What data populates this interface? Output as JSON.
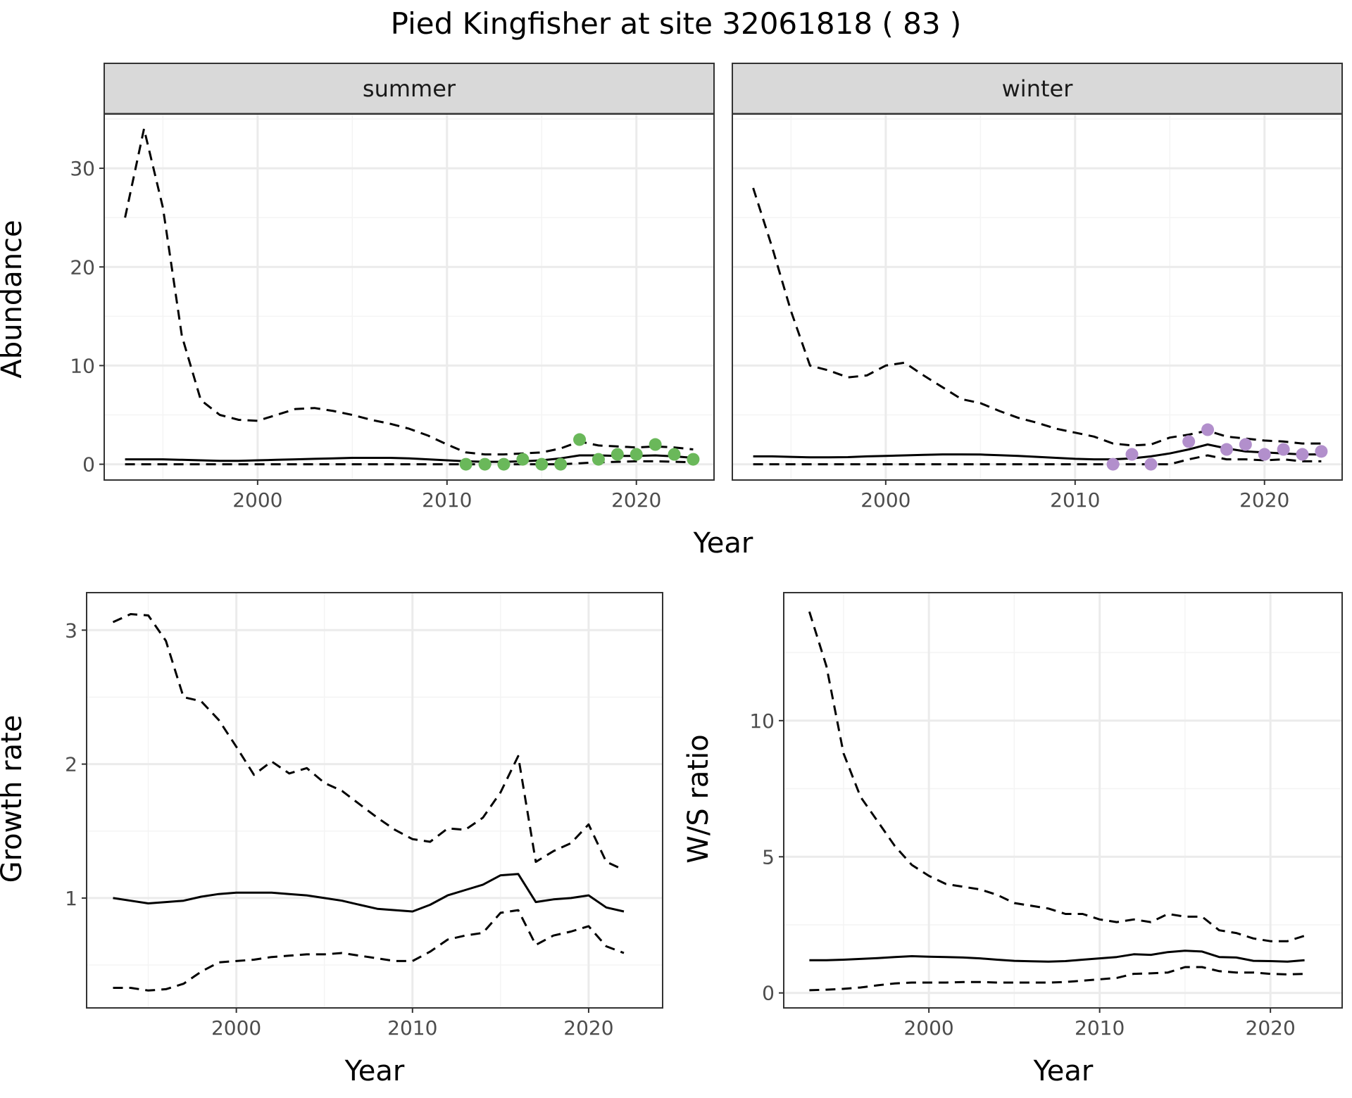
{
  "title": "Pied Kingfisher at site 32061818 ( 83 )",
  "colors": {
    "summer_points": "#6ab85a",
    "winter_points": "#b28fcc",
    "line": "#000000",
    "strip_bg": "#d9d9d9",
    "grid_major": "#ebebeb",
    "grid_minor": "#f4f4f4"
  },
  "chart_data": [
    {
      "type": "line",
      "facet": "summer",
      "strip_label": "summer",
      "xlabel": "Year",
      "ylabel": "Abundance",
      "xlim": [
        1991.9,
        2024.1
      ],
      "ylim": [
        -1.6,
        35.5
      ],
      "xticks": [
        2000,
        2010,
        2020
      ],
      "yticks": [
        0,
        10,
        20,
        30
      ],
      "grid": true,
      "x": [
        1993,
        1994,
        1995,
        1996,
        1997,
        1998,
        1999,
        2000,
        2001,
        2002,
        2003,
        2004,
        2005,
        2006,
        2007,
        2008,
        2009,
        2010,
        2011,
        2012,
        2013,
        2014,
        2015,
        2016,
        2017,
        2018,
        2019,
        2020,
        2021,
        2022,
        2023
      ],
      "series": [
        {
          "style": "solid",
          "values": [
            0.5,
            0.5,
            0.5,
            0.45,
            0.4,
            0.35,
            0.35,
            0.4,
            0.45,
            0.5,
            0.55,
            0.6,
            0.65,
            0.65,
            0.65,
            0.6,
            0.5,
            0.4,
            0.3,
            0.25,
            0.25,
            0.3,
            0.4,
            0.6,
            0.9,
            0.9,
            0.85,
            0.85,
            0.9,
            0.8,
            0.65
          ]
        },
        {
          "style": "dashed",
          "values": [
            25,
            34,
            26,
            13,
            6.5,
            5,
            4.5,
            4.4,
            5,
            5.6,
            5.7,
            5.4,
            5,
            4.5,
            4.1,
            3.6,
            2.9,
            2,
            1.2,
            1,
            1,
            1.1,
            1.2,
            1.6,
            2.3,
            1.9,
            1.8,
            1.7,
            1.8,
            1.7,
            1.5
          ]
        },
        {
          "style": "dashed",
          "values": [
            0,
            0,
            0,
            0,
            0,
            0,
            0,
            0,
            0,
            0,
            0,
            0,
            0,
            0,
            0,
            0,
            0,
            0,
            0,
            0,
            0,
            0,
            0,
            0,
            0.1,
            0.2,
            0.25,
            0.3,
            0.3,
            0.25,
            0.2
          ]
        }
      ],
      "points": {
        "x": [
          2011,
          2012,
          2013,
          2014,
          2015,
          2016,
          2017,
          2018,
          2019,
          2020,
          2021,
          2022,
          2023
        ],
        "y": [
          0,
          0,
          0,
          0.5,
          0,
          0,
          2.5,
          0.5,
          1,
          1,
          2,
          1,
          0.5
        ]
      }
    },
    {
      "type": "line",
      "facet": "winter",
      "strip_label": "winter",
      "xlabel": "Year",
      "ylabel": "Abundance",
      "xlim": [
        1991.9,
        2024.1
      ],
      "ylim": [
        -1.6,
        35.5
      ],
      "xticks": [
        2000,
        2010,
        2020
      ],
      "yticks": [
        0,
        10,
        20,
        30
      ],
      "grid": true,
      "x": [
        1993,
        1994,
        1995,
        1996,
        1997,
        1998,
        1999,
        2000,
        2001,
        2002,
        2003,
        2004,
        2005,
        2006,
        2007,
        2008,
        2009,
        2010,
        2011,
        2012,
        2013,
        2014,
        2015,
        2016,
        2017,
        2018,
        2019,
        2020,
        2021,
        2022,
        2023
      ],
      "series": [
        {
          "style": "solid",
          "values": [
            0.8,
            0.8,
            0.75,
            0.7,
            0.7,
            0.72,
            0.8,
            0.85,
            0.9,
            0.95,
            1.0,
            1.0,
            0.98,
            0.92,
            0.85,
            0.75,
            0.65,
            0.55,
            0.5,
            0.5,
            0.6,
            0.8,
            1.1,
            1.5,
            2.0,
            1.6,
            1.3,
            1.2,
            1.1,
            1.0,
            1.0
          ]
        },
        {
          "style": "dashed",
          "values": [
            28,
            22,
            15.5,
            10,
            9.5,
            8.8,
            9,
            10,
            10.3,
            9,
            7.8,
            6.6,
            6.2,
            5.4,
            4.7,
            4.2,
            3.6,
            3.2,
            2.8,
            2.1,
            1.9,
            2.0,
            2.7,
            3.0,
            3.4,
            2.8,
            2.6,
            2.4,
            2.3,
            2.1,
            2.1
          ]
        },
        {
          "style": "dashed",
          "values": [
            0,
            0,
            0,
            0,
            0,
            0,
            0,
            0,
            0,
            0,
            0,
            0,
            0,
            0,
            0,
            0,
            0,
            0,
            0,
            0,
            0,
            0,
            0,
            0.5,
            0.9,
            0.5,
            0.5,
            0.4,
            0.5,
            0.3,
            0.3
          ]
        }
      ],
      "points": {
        "x": [
          2012,
          2013,
          2014,
          2016,
          2017,
          2018,
          2019,
          2020,
          2021,
          2022,
          2023
        ],
        "y": [
          0,
          1,
          0,
          2.3,
          3.5,
          1.5,
          2,
          1,
          1.5,
          1,
          1.3
        ]
      }
    },
    {
      "type": "line",
      "facet": "growth",
      "xlabel": "Year",
      "ylabel": "Growth rate",
      "xlim": [
        1991.5,
        2024.2
      ],
      "ylim": [
        0.18,
        3.28
      ],
      "xticks": [
        2000,
        2010,
        2020
      ],
      "yticks": [
        1,
        2,
        3
      ],
      "grid": true,
      "x": [
        1993,
        1994,
        1995,
        1996,
        1997,
        1998,
        1999,
        2000,
        2001,
        2002,
        2003,
        2004,
        2005,
        2006,
        2007,
        2008,
        2009,
        2010,
        2011,
        2012,
        2013,
        2014,
        2015,
        2016,
        2017,
        2018,
        2019,
        2020,
        2021,
        2022
      ],
      "series": [
        {
          "style": "solid",
          "values": [
            1.0,
            0.98,
            0.96,
            0.97,
            0.98,
            1.01,
            1.03,
            1.04,
            1.04,
            1.04,
            1.03,
            1.02,
            1.0,
            0.98,
            0.95,
            0.92,
            0.91,
            0.9,
            0.95,
            1.02,
            1.06,
            1.1,
            1.17,
            1.18,
            0.97,
            0.99,
            1.0,
            1.02,
            0.93,
            0.9
          ]
        },
        {
          "style": "dashed",
          "values": [
            3.06,
            3.12,
            3.11,
            2.92,
            2.5,
            2.47,
            2.33,
            2.13,
            1.92,
            2.02,
            1.93,
            1.97,
            1.86,
            1.8,
            1.7,
            1.6,
            1.51,
            1.44,
            1.42,
            1.52,
            1.51,
            1.6,
            1.79,
            2.06,
            1.27,
            1.35,
            1.41,
            1.55,
            1.27,
            1.21
          ]
        },
        {
          "style": "dashed",
          "values": [
            0.33,
            0.33,
            0.31,
            0.32,
            0.36,
            0.45,
            0.52,
            0.53,
            0.54,
            0.56,
            0.57,
            0.58,
            0.58,
            0.59,
            0.57,
            0.55,
            0.53,
            0.53,
            0.6,
            0.69,
            0.72,
            0.74,
            0.89,
            0.91,
            0.65,
            0.72,
            0.75,
            0.79,
            0.64,
            0.59
          ]
        }
      ]
    },
    {
      "type": "line",
      "facet": "ratio",
      "xlabel": "Year",
      "ylabel": "W/S ratio",
      "xlim": [
        1991.5,
        2024.2
      ],
      "ylim": [
        -0.55,
        14.7
      ],
      "xticks": [
        2000,
        2010,
        2020
      ],
      "yticks": [
        0,
        5,
        10
      ],
      "grid": true,
      "x": [
        1993,
        1994,
        1995,
        1996,
        1997,
        1998,
        1999,
        2000,
        2001,
        2002,
        2003,
        2004,
        2005,
        2006,
        2007,
        2008,
        2009,
        2010,
        2011,
        2012,
        2013,
        2014,
        2015,
        2016,
        2017,
        2018,
        2019,
        2020,
        2021,
        2022
      ],
      "series": [
        {
          "style": "solid",
          "values": [
            1.2,
            1.2,
            1.22,
            1.25,
            1.28,
            1.32,
            1.35,
            1.33,
            1.32,
            1.3,
            1.27,
            1.22,
            1.18,
            1.16,
            1.15,
            1.17,
            1.22,
            1.27,
            1.32,
            1.42,
            1.4,
            1.5,
            1.55,
            1.52,
            1.32,
            1.3,
            1.18,
            1.17,
            1.15,
            1.2
          ]
        },
        {
          "style": "dashed",
          "values": [
            14,
            12,
            8.8,
            7.2,
            6.3,
            5.4,
            4.7,
            4.3,
            4.0,
            3.9,
            3.8,
            3.6,
            3.3,
            3.2,
            3.1,
            2.9,
            2.9,
            2.7,
            2.6,
            2.7,
            2.6,
            2.9,
            2.8,
            2.8,
            2.3,
            2.2,
            2.0,
            1.9,
            1.9,
            2.1
          ]
        },
        {
          "style": "dashed",
          "values": [
            0.1,
            0.12,
            0.15,
            0.2,
            0.28,
            0.35,
            0.38,
            0.38,
            0.38,
            0.4,
            0.4,
            0.38,
            0.38,
            0.38,
            0.38,
            0.4,
            0.45,
            0.5,
            0.55,
            0.7,
            0.72,
            0.75,
            0.95,
            0.95,
            0.8,
            0.75,
            0.75,
            0.7,
            0.68,
            0.7
          ]
        }
      ]
    }
  ]
}
